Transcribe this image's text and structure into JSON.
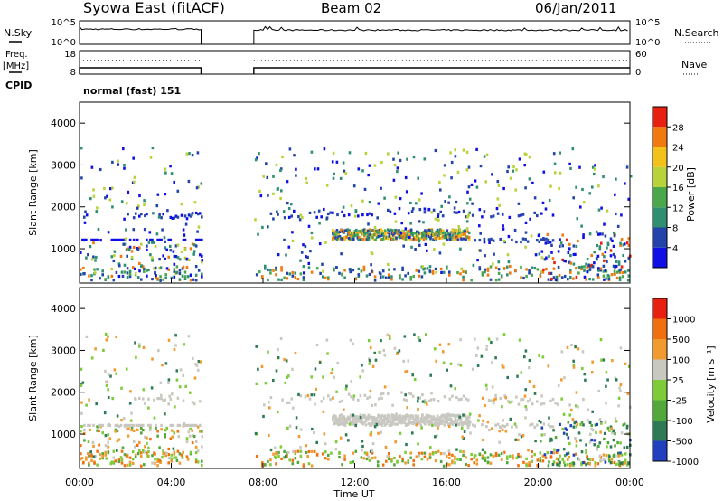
{
  "header": {
    "station": "Syowa East (fitACF)",
    "beam": "Beam 02",
    "date": "06/Jan/2011"
  },
  "panels": {
    "nsky_label": "N.Sky",
    "nsearch_label": "N.Search",
    "freq_label_1": "Freq.",
    "freq_label_2": "[MHz]",
    "nave_label": "Nave",
    "cpid_label": "CPID",
    "cpid_value": "normal (fast) 151",
    "noise_ticks_left": [
      "10^5",
      "10^0"
    ],
    "noise_ticks_right": [
      "10^5",
      "10^0"
    ],
    "freq_ticks_left": [
      "18",
      "8"
    ],
    "freq_ticks_right": [
      "60",
      "0"
    ]
  },
  "axes": {
    "ylabel": "Slant Range [km]",
    "xlabel": "Time UT",
    "y_ticks": [
      "1000",
      "2000",
      "3000",
      "4000"
    ],
    "x_ticks": [
      "00:00",
      "04:00",
      "08:00",
      "12:00",
      "16:00",
      "20:00",
      "00:00"
    ]
  },
  "colorbars": {
    "power": {
      "label": "Power [dB]",
      "ticks": [
        "4",
        "8",
        "12",
        "16",
        "20",
        "24",
        "28"
      ]
    },
    "velocity": {
      "label": "Velocity [m s⁻¹]",
      "ticks": [
        "1000",
        "500",
        "100",
        "25",
        "-25",
        "-100",
        "-500",
        "-1000"
      ]
    }
  },
  "colors": {
    "power": [
      "#1010e6",
      "#2244aa",
      "#2f8f70",
      "#4aa84a",
      "#b8d23a",
      "#f2c21a",
      "#f07a10",
      "#e82010"
    ],
    "velocity": [
      "#2040c0",
      "#2d7a55",
      "#52a83a",
      "#7ecb3a",
      "#c8c8c0",
      "#f09a30",
      "#f07010",
      "#e82010"
    ]
  },
  "chart_data": [
    {
      "type": "heatmap",
      "title": "Power",
      "x_range_hours": [
        0,
        24
      ],
      "ylim": [
        180,
        4500
      ],
      "ylabel": "Slant Range [km]",
      "data_gap_hours": [
        5.3,
        7.6
      ],
      "colorbar": {
        "label": "Power [dB]",
        "range": [
          0,
          32
        ]
      }
    },
    {
      "type": "heatmap",
      "title": "Velocity",
      "x_range_hours": [
        0,
        24
      ],
      "ylim": [
        180,
        4500
      ],
      "ylabel": "Slant Range [km]",
      "xlabel": "Time UT",
      "data_gap_hours": [
        5.3,
        7.6
      ],
      "colorbar": {
        "label": "Velocity [m s⁻¹]",
        "range": [
          -1000,
          1000
        ]
      }
    }
  ]
}
